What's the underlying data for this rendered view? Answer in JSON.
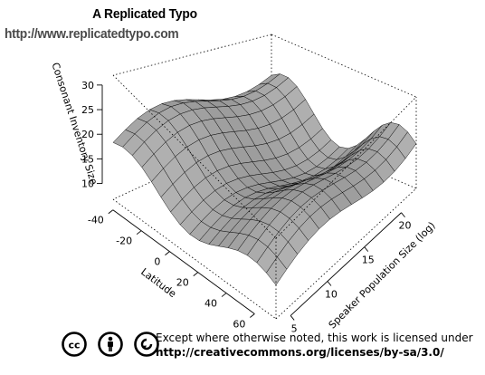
{
  "header": {
    "title": "A Replicated Typo",
    "url": "http://www.replicatedtypo.com"
  },
  "license": {
    "line1": "Except where otherwise noted, this work is licensed under",
    "line2": "http://creativecommons.org/licenses/by-sa/3.0/",
    "icons": [
      "cc-icon",
      "by-icon",
      "sa-icon"
    ]
  },
  "chart_data": {
    "type": "surface3d",
    "title": "",
    "zlabel": "Consonant Inventory Size",
    "xlabel": "Latitude",
    "ylabel": "Speaker Population Size (log)",
    "z_ticks": [
      10,
      15,
      20,
      25,
      30
    ],
    "x_ticks": [
      -40,
      -20,
      0,
      20,
      40,
      60
    ],
    "y_ticks": [
      5,
      10,
      15,
      20
    ],
    "xlim": [
      -45,
      70
    ],
    "ylim": [
      4,
      23
    ],
    "zlim": [
      9,
      32
    ],
    "surface_color": "#8c8c8c",
    "grid_rows": 13,
    "grid_cols": 17,
    "approx_surface_profile": {
      "description_note_removed": true,
      "ridge_latitudes": [
        -35,
        10,
        45
      ],
      "valley_latitudes": [
        -15,
        25,
        60
      ],
      "z_range_observed": [
        10,
        29
      ]
    }
  }
}
